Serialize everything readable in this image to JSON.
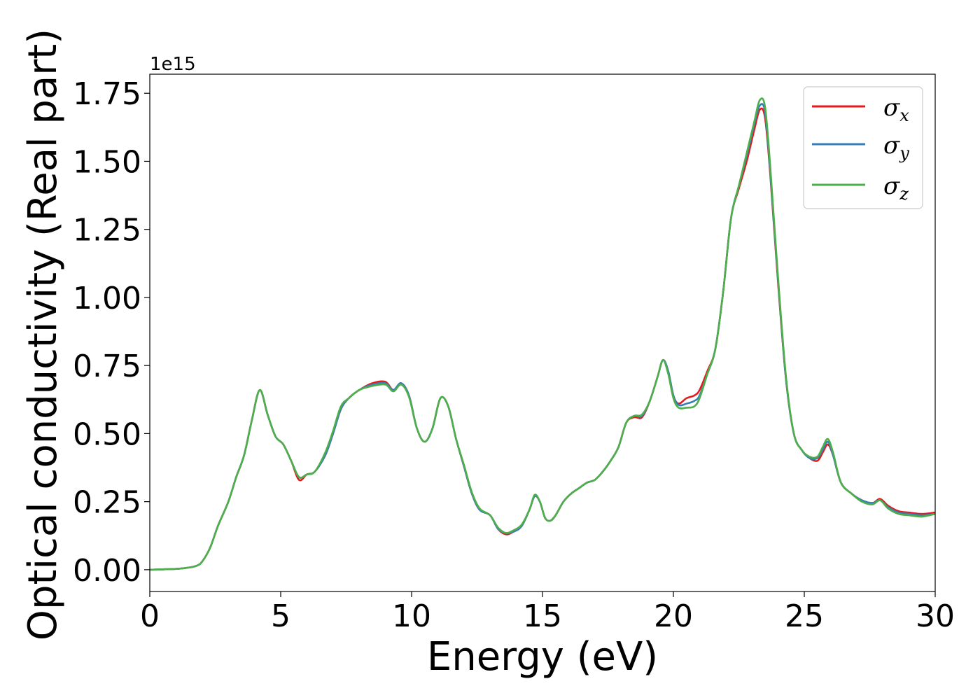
{
  "chart_data": {
    "type": "line",
    "xlabel": "Energy (eV)",
    "ylabel": "Optical conductivity (Real part)",
    "y_offset_label": "1e15",
    "xlim": [
      0,
      30
    ],
    "ylim": [
      -0.08,
      1.82
    ],
    "x_ticks": [
      0,
      5,
      10,
      15,
      20,
      25,
      30
    ],
    "x_tick_labels": [
      "0",
      "5",
      "10",
      "15",
      "20",
      "25",
      "30"
    ],
    "y_ticks": [
      0.0,
      0.25,
      0.5,
      0.75,
      1.0,
      1.25,
      1.5,
      1.75
    ],
    "y_tick_labels": [
      "0.00",
      "0.25",
      "0.50",
      "0.75",
      "1.00",
      "1.25",
      "1.50",
      "1.75"
    ],
    "grid": false,
    "legend_position": "top-right",
    "x": [
      0,
      1,
      1.5,
      1.8,
      2.0,
      2.3,
      2.6,
      3.0,
      3.3,
      3.6,
      3.9,
      4.2,
      4.5,
      4.8,
      5.1,
      5.4,
      5.7,
      6.0,
      6.3,
      6.7,
      7.0,
      7.3,
      7.6,
      8.0,
      8.5,
      9.0,
      9.3,
      9.6,
      9.9,
      10.2,
      10.5,
      10.8,
      11.1,
      11.4,
      11.7,
      12.0,
      12.3,
      12.6,
      13.0,
      13.3,
      13.6,
      13.9,
      14.2,
      14.5,
      14.7,
      14.9,
      15.1,
      15.3,
      15.5,
      15.8,
      16.1,
      16.4,
      16.7,
      17.0,
      17.3,
      17.6,
      17.9,
      18.2,
      18.5,
      18.8,
      19.1,
      19.4,
      19.6,
      19.8,
      20.0,
      20.2,
      20.5,
      20.8,
      21.0,
      21.3,
      21.6,
      21.9,
      22.2,
      22.5,
      22.8,
      23.1,
      23.3,
      23.5,
      23.7,
      24.0,
      24.3,
      24.6,
      24.9,
      25.2,
      25.5,
      25.7,
      25.9,
      26.1,
      26.4,
      26.8,
      27.2,
      27.6,
      27.9,
      28.2,
      28.6,
      29.0,
      29.5,
      30.0
    ],
    "series": [
      {
        "name": "σx",
        "color": "#e41a1c",
        "values": [
          0.0,
          0.003,
          0.008,
          0.015,
          0.03,
          0.08,
          0.16,
          0.25,
          0.34,
          0.42,
          0.55,
          0.66,
          0.57,
          0.49,
          0.46,
          0.4,
          0.33,
          0.35,
          0.36,
          0.42,
          0.5,
          0.59,
          0.63,
          0.66,
          0.685,
          0.69,
          0.66,
          0.685,
          0.64,
          0.52,
          0.47,
          0.52,
          0.63,
          0.6,
          0.48,
          0.38,
          0.28,
          0.22,
          0.2,
          0.15,
          0.13,
          0.14,
          0.16,
          0.22,
          0.27,
          0.25,
          0.19,
          0.18,
          0.2,
          0.25,
          0.28,
          0.3,
          0.32,
          0.33,
          0.36,
          0.4,
          0.45,
          0.54,
          0.56,
          0.56,
          0.62,
          0.71,
          0.77,
          0.73,
          0.64,
          0.61,
          0.63,
          0.64,
          0.66,
          0.73,
          0.81,
          1.02,
          1.29,
          1.4,
          1.5,
          1.62,
          1.69,
          1.66,
          1.45,
          1.05,
          0.7,
          0.5,
          0.44,
          0.41,
          0.4,
          0.43,
          0.46,
          0.42,
          0.32,
          0.28,
          0.255,
          0.245,
          0.26,
          0.235,
          0.215,
          0.21,
          0.205,
          0.21
        ]
      },
      {
        "name": "σy",
        "color": "#377eb8",
        "values": [
          0.0,
          0.003,
          0.008,
          0.015,
          0.03,
          0.08,
          0.16,
          0.25,
          0.34,
          0.42,
          0.55,
          0.66,
          0.57,
          0.49,
          0.46,
          0.4,
          0.34,
          0.35,
          0.36,
          0.42,
          0.5,
          0.59,
          0.63,
          0.66,
          0.68,
          0.685,
          0.66,
          0.685,
          0.64,
          0.52,
          0.47,
          0.52,
          0.63,
          0.6,
          0.48,
          0.38,
          0.28,
          0.22,
          0.2,
          0.15,
          0.135,
          0.14,
          0.16,
          0.22,
          0.27,
          0.25,
          0.19,
          0.18,
          0.2,
          0.25,
          0.28,
          0.3,
          0.32,
          0.33,
          0.36,
          0.4,
          0.45,
          0.54,
          0.565,
          0.565,
          0.62,
          0.71,
          0.77,
          0.73,
          0.64,
          0.605,
          0.61,
          0.62,
          0.64,
          0.72,
          0.81,
          1.02,
          1.29,
          1.41,
          1.52,
          1.64,
          1.705,
          1.68,
          1.46,
          1.06,
          0.7,
          0.5,
          0.44,
          0.41,
          0.41,
          0.44,
          0.47,
          0.42,
          0.32,
          0.28,
          0.255,
          0.245,
          0.255,
          0.23,
          0.21,
          0.205,
          0.2,
          0.205
        ]
      },
      {
        "name": "σz",
        "color": "#4daf4a",
        "values": [
          0.0,
          0.003,
          0.008,
          0.015,
          0.03,
          0.08,
          0.16,
          0.25,
          0.34,
          0.42,
          0.55,
          0.66,
          0.57,
          0.49,
          0.46,
          0.4,
          0.34,
          0.35,
          0.36,
          0.43,
          0.51,
          0.6,
          0.63,
          0.66,
          0.675,
          0.68,
          0.655,
          0.68,
          0.635,
          0.52,
          0.47,
          0.52,
          0.63,
          0.6,
          0.48,
          0.385,
          0.285,
          0.225,
          0.2,
          0.155,
          0.135,
          0.145,
          0.165,
          0.22,
          0.275,
          0.25,
          0.19,
          0.18,
          0.2,
          0.25,
          0.28,
          0.3,
          0.32,
          0.33,
          0.36,
          0.4,
          0.45,
          0.54,
          0.565,
          0.57,
          0.62,
          0.71,
          0.77,
          0.72,
          0.63,
          0.595,
          0.595,
          0.6,
          0.63,
          0.72,
          0.81,
          1.02,
          1.29,
          1.41,
          1.53,
          1.65,
          1.725,
          1.7,
          1.48,
          1.07,
          0.71,
          0.5,
          0.44,
          0.415,
          0.415,
          0.45,
          0.48,
          0.43,
          0.32,
          0.28,
          0.25,
          0.24,
          0.255,
          0.225,
          0.205,
          0.2,
          0.195,
          0.205
        ]
      }
    ]
  },
  "legend": {
    "items": [
      {
        "symbol": "σ",
        "sub": "x",
        "color": "#e41a1c"
      },
      {
        "symbol": "σ",
        "sub": "y",
        "color": "#377eb8"
      },
      {
        "symbol": "σ",
        "sub": "z",
        "color": "#4daf4a"
      }
    ]
  }
}
